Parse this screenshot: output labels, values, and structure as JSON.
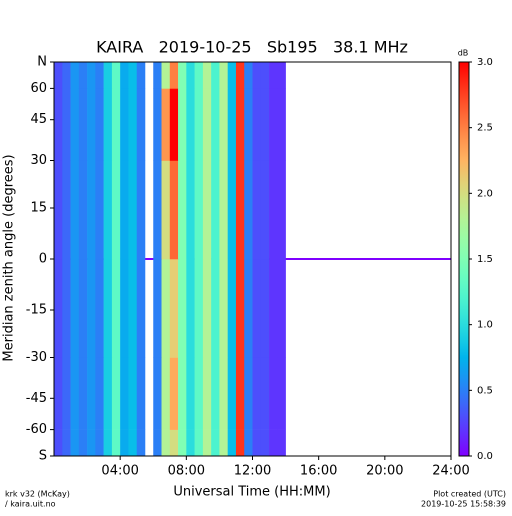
{
  "chart_data": {
    "type": "heatmap",
    "title": "KAIRA   2019-10-25   Sb195   38.1 MHz",
    "xlabel": "Universal Time (HH:MM)",
    "ylabel": "Meridian zenith angle (degrees)",
    "xlim": [
      0,
      24
    ],
    "xticks": [
      {
        "value": 4,
        "label": "04:00"
      },
      {
        "value": 8,
        "label": "08:00"
      },
      {
        "value": 12,
        "label": "12:00"
      },
      {
        "value": 16,
        "label": "16:00"
      },
      {
        "value": 20,
        "label": "20:00"
      },
      {
        "value": 24,
        "label": "24:00"
      }
    ],
    "ylim": [
      -90,
      90
    ],
    "yscale": "sin",
    "yticks": [
      {
        "value": -90,
        "label": "S"
      },
      -60,
      -45,
      -30,
      -15,
      0,
      15,
      30,
      45,
      60,
      {
        "value": 90,
        "label": "N"
      }
    ],
    "xbins": [
      0,
      0.5,
      1,
      1.5,
      2,
      2.5,
      3,
      3.5,
      4,
      4.5,
      5,
      5.5,
      6,
      6.5,
      7,
      7.5,
      8,
      8.5,
      9,
      9.5,
      10,
      10.5,
      11,
      11.5,
      12,
      12.5,
      13,
      13.5,
      14
    ],
    "ybins": [
      -90,
      -60,
      -30,
      0,
      30,
      60,
      90
    ],
    "z": [
      [
        0.3,
        0.4,
        0.6,
        0.5,
        0.6,
        0.5,
        0.9,
        1.3,
        0.7,
        0.8,
        0.5,
        null,
        0.5,
        1.8,
        2.0,
        1.5,
        1.0,
        1.3,
        1.8,
        1.2,
        1.8,
        0.8,
        2.8,
        0.5,
        0.3,
        0.3,
        0.2,
        0.2
      ],
      [
        0.3,
        0.4,
        0.6,
        0.5,
        0.6,
        0.5,
        0.9,
        1.3,
        0.7,
        0.8,
        0.5,
        null,
        0.5,
        1.8,
        2.3,
        1.5,
        1.0,
        1.3,
        1.8,
        1.2,
        1.8,
        0.8,
        2.8,
        0.5,
        0.3,
        0.3,
        0.2,
        0.2
      ],
      [
        0.3,
        0.4,
        0.6,
        0.5,
        0.6,
        0.5,
        0.9,
        1.3,
        0.7,
        0.8,
        0.5,
        null,
        0.5,
        1.8,
        2.1,
        1.5,
        1.0,
        1.3,
        1.8,
        1.2,
        1.8,
        0.8,
        2.8,
        0.5,
        0.3,
        0.3,
        0.2,
        0.2
      ],
      [
        0.3,
        0.4,
        0.6,
        0.5,
        0.6,
        0.5,
        0.9,
        1.3,
        0.7,
        0.8,
        0.5,
        null,
        0.5,
        2.0,
        2.6,
        1.5,
        1.0,
        1.3,
        1.8,
        1.2,
        1.8,
        0.8,
        2.8,
        0.5,
        0.3,
        0.3,
        0.2,
        0.2
      ],
      [
        0.3,
        0.4,
        0.6,
        0.5,
        0.6,
        0.5,
        0.9,
        1.3,
        0.7,
        0.8,
        0.5,
        null,
        0.5,
        2.4,
        3.0,
        1.5,
        1.0,
        1.3,
        1.8,
        1.2,
        1.8,
        0.8,
        2.8,
        0.5,
        0.3,
        0.3,
        0.2,
        0.2
      ],
      [
        0.3,
        0.4,
        0.6,
        0.5,
        0.6,
        0.5,
        0.9,
        1.3,
        0.7,
        0.8,
        0.5,
        null,
        0.5,
        1.8,
        2.5,
        1.5,
        1.0,
        1.3,
        1.8,
        1.2,
        1.8,
        0.8,
        2.8,
        0.5,
        0.3,
        0.3,
        0.2,
        0.2
      ]
    ],
    "colormap": "rainbow",
    "clim": [
      0,
      3
    ],
    "colorbar_label": "dB",
    "cticks": [
      {
        "value": 0,
        "label": "0.0"
      },
      {
        "value": 0.5,
        "label": "0.5"
      },
      {
        "value": 1,
        "label": "1.0"
      },
      {
        "value": 1.5,
        "label": "1.5"
      },
      {
        "value": 2,
        "label": "2.0"
      },
      {
        "value": 2.5,
        "label": "2.5"
      },
      {
        "value": 3,
        "label": "3.0"
      }
    ],
    "footer_left": [
      "krk v32 (McKay)",
      "/ kaira.uit.no"
    ],
    "footer_right": [
      "Plot created (UTC)",
      "2019-10-25 15:58:39"
    ]
  }
}
